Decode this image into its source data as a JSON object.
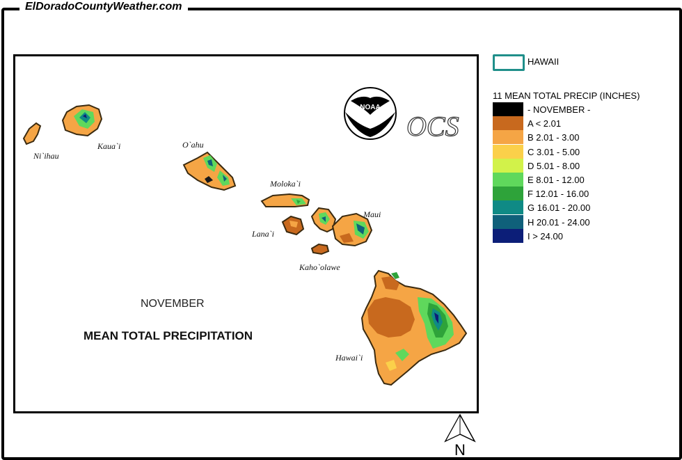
{
  "site_title": "ElDoradoCountyWeather.com",
  "map": {
    "month_label": "NOVEMBER",
    "title": "MEAN TOTAL PRECIPITATION",
    "islands": [
      "Ni`ihau",
      "Kaua`i",
      "O`ahu",
      "Moloka`i",
      "Lana`i",
      "Maui",
      "Kaho`olawe",
      "Hawai`i"
    ],
    "noaa_logo_text": "NOAA",
    "ocs_logo_text": "OCS"
  },
  "legend": {
    "state_label": "HAWAII",
    "title": "11 MEAN TOTAL PRECIP (INCHES)",
    "items": [
      {
        "label": "- NOVEMBER -",
        "color": "#000000"
      },
      {
        "label": "A < 2.01",
        "color": "#c8691e"
      },
      {
        "label": "B 2.01 - 3.00",
        "color": "#f5a545"
      },
      {
        "label": "C 3.01 - 5.00",
        "color": "#fbd04a"
      },
      {
        "label": "D 5.01 - 8.00",
        "color": "#d2f24a"
      },
      {
        "label": "E 8.01 - 12.00",
        "color": "#5fd85c"
      },
      {
        "label": "F 12.01 - 16.00",
        "color": "#2ea33a"
      },
      {
        "label": "G 16.01 - 20.00",
        "color": "#0f8a85"
      },
      {
        "label": "H 20.01 - 24.00",
        "color": "#0f607a"
      },
      {
        "label": "I > 24.00",
        "color": "#0c1e78"
      }
    ]
  },
  "compass_label": "N"
}
